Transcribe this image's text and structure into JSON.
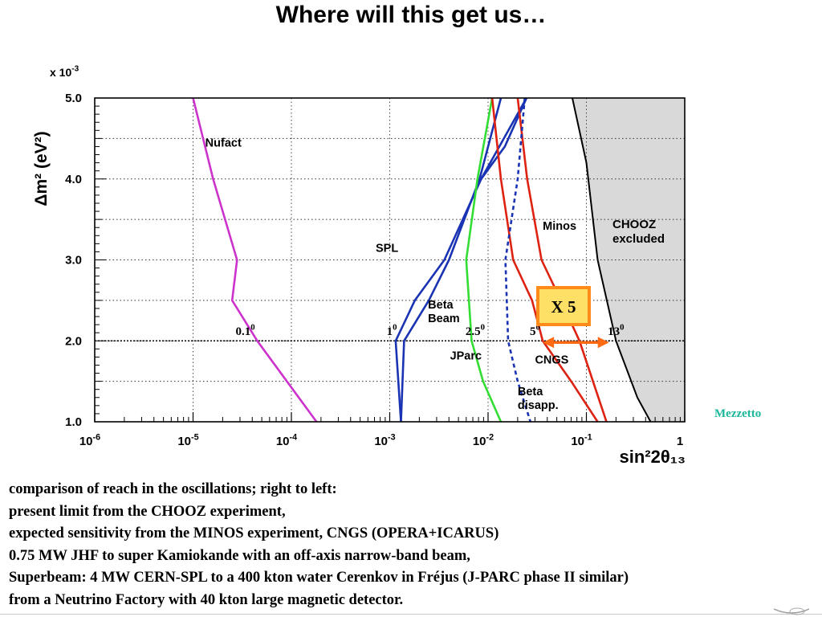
{
  "title": "Where will this get us…",
  "credit": "Mezzetto",
  "caption_lines": [
    "comparison of reach in the  oscillations; right to left:",
    "present limit from the CHOOZ experiment,",
    "expected sensitivity from the MINOS experiment, CNGS (OPERA+ICARUS)",
    "0.75 MW JHF to super Kamiokande with an off-axis narrow-band beam,",
    "Superbeam: 4 MW CERN-SPL to a 400 kton water Cerenkov  in  Fréjus (J-PARC phase II similar)",
    "from a Neutrino Factory with 40 kton large magnetic detector."
  ],
  "chart_data": {
    "type": "line",
    "x_scale": "log",
    "xlim": [
      1e-06,
      1
    ],
    "ylim": [
      1.0,
      5.0
    ],
    "xlabel": "sin²2θ₁₃",
    "ylabel": "Δm² (eV²)",
    "y_multiplier_label": "x 10",
    "y_multiplier_exp": "-3",
    "x_tick_labels": [
      {
        "base": "10",
        "exp": "-6",
        "x": 1e-06
      },
      {
        "base": "10",
        "exp": "-5",
        "x": 1e-05
      },
      {
        "base": "10",
        "exp": "-4",
        "x": 0.0001
      },
      {
        "base": "10",
        "exp": "-3",
        "x": 0.001
      },
      {
        "base": "10",
        "exp": "-2",
        "x": 0.01
      },
      {
        "base": "10",
        "exp": "-1",
        "x": 0.1
      },
      {
        "base": "1",
        "exp": "",
        "x": 1
      }
    ],
    "y_tick_labels": [
      {
        "label": "1.0",
        "y": 1.0
      },
      {
        "label": "2.0",
        "y": 2.0
      },
      {
        "label": "3.0",
        "y": 3.0
      },
      {
        "label": "4.0",
        "y": 4.0
      },
      {
        "label": "5.0",
        "y": 5.0
      }
    ],
    "grid": true,
    "reference_line_y": 2.0,
    "excluded_region": {
      "label_lines": [
        "CHOOZ",
        "excluded"
      ],
      "color": "#d9d9d9",
      "boundary": [
        [
          0.072,
          5.0
        ],
        [
          0.1,
          4.2
        ],
        [
          0.13,
          3.0
        ],
        [
          0.2,
          2.0
        ],
        [
          0.33,
          1.3
        ],
        [
          0.45,
          1.0
        ]
      ]
    },
    "series": [
      {
        "name": "Nufact",
        "color": "#cc33cc",
        "dash": false,
        "points": [
          [
            1e-05,
            5.0
          ],
          [
            1.6e-05,
            4.0
          ],
          [
            2.8e-05,
            3.0
          ],
          [
            2.5e-05,
            2.5
          ],
          [
            4.5e-05,
            2.0
          ],
          [
            0.00018,
            1.0
          ]
        ]
      },
      {
        "name": "SPL",
        "color": "#1a33b3",
        "dash": false,
        "points": [
          [
            0.0246,
            5.0
          ],
          [
            0.0085,
            4.0
          ],
          [
            0.0036,
            3.0
          ],
          [
            0.0018,
            2.5
          ],
          [
            0.00115,
            2.0
          ],
          [
            0.0013,
            1.0
          ]
        ]
      },
      {
        "name": "",
        "color": "#1a33b3",
        "dash": false,
        "points": [
          [
            0.0135,
            5.0
          ],
          [
            0.0082,
            4.0
          ],
          [
            0.004,
            3.0
          ],
          [
            0.0025,
            2.5
          ],
          [
            0.0014,
            2.0
          ],
          [
            0.0013,
            1.0
          ]
        ]
      },
      {
        "name": "",
        "color": "#1a33b3",
        "dash": false,
        "points": [
          [
            0.0246,
            5.0
          ],
          [
            0.0148,
            4.4
          ],
          [
            0.0085,
            4.0
          ]
        ]
      },
      {
        "name": "Beta Beam",
        "color": "#33dd33",
        "dash": false,
        "points": [
          [
            0.011,
            5.0
          ],
          [
            0.0078,
            4.0
          ],
          [
            0.006,
            3.0
          ],
          [
            0.0068,
            2.0
          ],
          [
            0.0089,
            1.5
          ],
          [
            0.0135,
            1.0
          ]
        ]
      },
      {
        "name": "Minos",
        "color": "#dd2211",
        "dash": false,
        "points": [
          [
            0.02,
            5.0
          ],
          [
            0.025,
            4.0
          ],
          [
            0.035,
            3.0
          ],
          [
            0.055,
            2.5
          ],
          [
            0.085,
            2.0
          ],
          [
            0.16,
            1.0
          ]
        ]
      },
      {
        "name": "CNGS",
        "color": "#dd2211",
        "dash": false,
        "points": [
          [
            0.011,
            5.0
          ],
          [
            0.0135,
            4.0
          ],
          [
            0.018,
            3.0
          ],
          [
            0.028,
            2.5
          ],
          [
            0.036,
            2.0
          ],
          [
            0.07,
            1.5
          ],
          [
            0.13,
            1.0
          ]
        ]
      },
      {
        "name": "Beta disapp.",
        "color": "#1a33b3",
        "dash": true,
        "points": [
          [
            0.0236,
            5.0
          ],
          [
            0.02,
            4.0
          ],
          [
            0.015,
            3.0
          ],
          [
            0.016,
            2.0
          ],
          [
            0.02,
            1.5
          ],
          [
            0.027,
            1.0
          ]
        ]
      }
    ],
    "series_labels": [
      {
        "lines": [
          "Nufact"
        ],
        "x": 1.33e-05,
        "y": 4.4
      },
      {
        "lines": [
          "SPL"
        ],
        "x": 0.00072,
        "y": 3.1
      },
      {
        "lines": [
          "Beta",
          "Beam"
        ],
        "x": 0.00245,
        "y": 2.4
      },
      {
        "lines": [
          "JParc"
        ],
        "x": 0.0041,
        "y": 1.77
      },
      {
        "lines": [
          "Minos"
        ],
        "x": 0.036,
        "y": 3.37
      },
      {
        "lines": [
          "CNGS"
        ],
        "x": 0.03,
        "y": 1.72
      },
      {
        "lines": [
          "Beta",
          "disapp."
        ],
        "x": 0.02,
        "y": 1.33
      }
    ],
    "angle_labels": [
      {
        "value": "0.1",
        "sup": "0",
        "x": 3.4e-05
      },
      {
        "value": "1",
        "sup": "0",
        "x": 0.00105
      },
      {
        "value": "2.5",
        "sup": "0",
        "x": 0.0074
      },
      {
        "value": "5",
        "sup": "0",
        "x": 0.03
      },
      {
        "value": "13",
        "sup": "0",
        "x": 0.2
      }
    ],
    "factor_box": {
      "label": "X 5",
      "fill": "#ffe066",
      "border": "#ff8c1a"
    },
    "factor_arrow": {
      "from_x": 0.036,
      "to_x": 0.17,
      "y": 1.98,
      "color": "#ff6a13"
    }
  }
}
